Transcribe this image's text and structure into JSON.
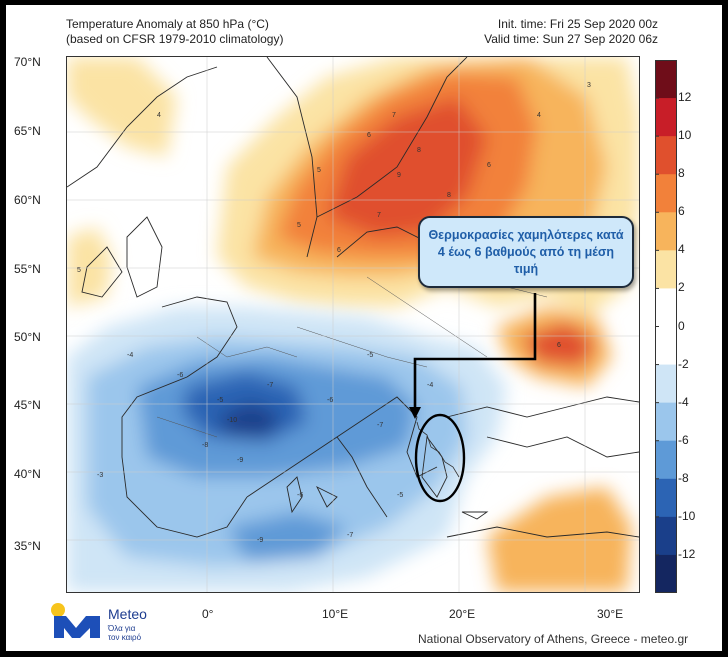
{
  "header": {
    "title_line1": "Temperature Anomaly at 850 hPa (°C)",
    "title_line2": "(based on CFSR 1979-2010 climatology)",
    "init_time": "Init. time: Fri 25 Sep 2020 00z",
    "valid_time": "Valid time: Sun 27 Sep 2020 06z"
  },
  "map": {
    "lat_labels": [
      "70°N",
      "65°N",
      "60°N",
      "55°N",
      "50°N",
      "45°N",
      "40°N",
      "35°N"
    ],
    "lon_labels": [
      "0°",
      "10°E",
      "20°E",
      "30°E"
    ],
    "contour_labels": {
      "warm": [
        "6",
        "7",
        "8",
        "9",
        "5",
        "8",
        "6",
        "4",
        "3",
        "4",
        "5",
        "6",
        "7",
        "5",
        "6",
        "5"
      ],
      "cold": [
        "-5",
        "-6",
        "-7",
        "-8",
        "-9",
        "-10",
        "-4",
        "-5",
        "-6",
        "-7",
        "-3",
        "-4",
        "-6",
        "-5",
        "-9",
        "-7"
      ]
    }
  },
  "colorbar": {
    "labels": [
      "12",
      "10",
      "8",
      "6",
      "4",
      "2",
      "0",
      "-2",
      "-4",
      "-6",
      "-8",
      "-10",
      "-12"
    ],
    "colors": [
      "#6f0d19",
      "#c81e28",
      "#e0502d",
      "#f2813a",
      "#f7b45c",
      "#fbe3a4",
      "#ffffff",
      "#ffffff",
      "#cfe5f6",
      "#9bc6ec",
      "#5e9ad7",
      "#2c64b4",
      "#1a3f8a",
      "#142660"
    ]
  },
  "callout": {
    "text": "Θερμοκρασίες χαμηλότερες κατά 4 έως 6 βαθμούς από τη μέση τιμή"
  },
  "logo": {
    "name": "Meteo",
    "tagline_1": "Όλα για",
    "tagline_2": "τον καιρό"
  },
  "footer": {
    "credit": "National Observatory of Athens, Greece - meteo.gr"
  }
}
